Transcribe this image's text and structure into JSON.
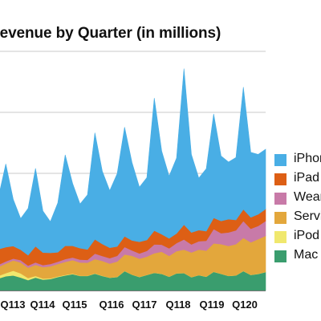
{
  "chart_data": {
    "type": "area",
    "stacked": true,
    "title": "Revenue by Quarter (in millions)",
    "xlabel": "",
    "ylabel": "",
    "x_tick_labels": [
      "Q113",
      "Q114",
      "Q115",
      "Q116",
      "Q117",
      "Q118",
      "Q119",
      "Q120"
    ],
    "ylim": [
      0,
      92
    ],
    "grid": true,
    "legend_position": "right",
    "series": [
      {
        "name": "Mac",
        "color": "#3a9d6e",
        "values": [
          4.6,
          5.5,
          5.8,
          5.0,
          4.0,
          5.0,
          4.2,
          4.4,
          5.2,
          5.8,
          6.3,
          5.6,
          5.6,
          6.5,
          5.6,
          4.9,
          5.2,
          7.5,
          6.1,
          5.2,
          6.0,
          6.8,
          6.4,
          5.3,
          6.6,
          6.7,
          5.1,
          5.9,
          5.3,
          7.2,
          6.4,
          5.6,
          5.8,
          7.5,
          6.0,
          6.4,
          7.1
        ]
      },
      {
        "name": "iPod",
        "color": "#f0e86e",
        "values": [
          1.0,
          1.2,
          1.8,
          1.6,
          0.8,
          0.6,
          0.4,
          0.3,
          0.2,
          0.2,
          0.2,
          0.1,
          0.1,
          0.1,
          0.1,
          0.05,
          0.05,
          0.05,
          0.05,
          0.05,
          0.05,
          0.05,
          0.05,
          0.05,
          0.05,
          0.05,
          0.05,
          0.05,
          0.05,
          0.05,
          0.05,
          0.05,
          0.05,
          0.05,
          0.05,
          0.05,
          0.05
        ]
      },
      {
        "name": "Services",
        "color": "#e3a73c",
        "values": [
          3.5,
          3.7,
          4.0,
          4.2,
          4.0,
          4.3,
          4.4,
          4.6,
          4.8,
          5.0,
          5.2,
          5.1,
          5.0,
          5.5,
          5.7,
          5.4,
          5.9,
          6.3,
          7.2,
          7.0,
          7.0,
          7.5,
          8.5,
          8.0,
          8.5,
          9.0,
          9.5,
          9.8,
          10.0,
          10.9,
          11.4,
          11.5,
          12.0,
          12.7,
          12.5,
          13.3,
          13.9
        ]
      },
      {
        "name": "Wearables",
        "color": "#c87aa8",
        "values": [
          0.8,
          0.8,
          0.7,
          0.9,
          0.8,
          0.9,
          0.8,
          0.9,
          0.9,
          1.1,
          1.0,
          1.1,
          1.1,
          2.1,
          1.9,
          2.1,
          2.2,
          2.9,
          2.1,
          2.0,
          2.2,
          3.4,
          2.7,
          2.9,
          3.1,
          3.9,
          3.1,
          3.2,
          3.8,
          5.5,
          4.2,
          5.2,
          5.3,
          6.5,
          5.2,
          5.1,
          5.7
        ]
      },
      {
        "name": "iPad",
        "color": "#dd5f15",
        "values": [
          6.0,
          5.5,
          4.8,
          4.0,
          4.0,
          6.2,
          4.8,
          4.3,
          3.6,
          5.1,
          4.5,
          4.4,
          4.0,
          5.5,
          4.6,
          4.0,
          3.6,
          4.1,
          3.8,
          4.5,
          4.2,
          5.3,
          4.0,
          3.8,
          3.7,
          5.7,
          4.6,
          4.3,
          3.7,
          4.3,
          4.7,
          5.1,
          4.0,
          4.5,
          4.4,
          4.5,
          4.6
        ]
      },
      {
        "name": "iPhone",
        "color": "#49aee5",
        "values": [
          20,
          32,
          18,
          12,
          18,
          30,
          16,
          12,
          19,
          35,
          24,
          17,
          21,
          41,
          28,
          22,
          28,
          42,
          30,
          21,
          24,
          51,
          32,
          24,
          29,
          60,
          30,
          20,
          24,
          40,
          25,
          22,
          24,
          47,
          25,
          23,
          23
        ]
      }
    ]
  }
}
